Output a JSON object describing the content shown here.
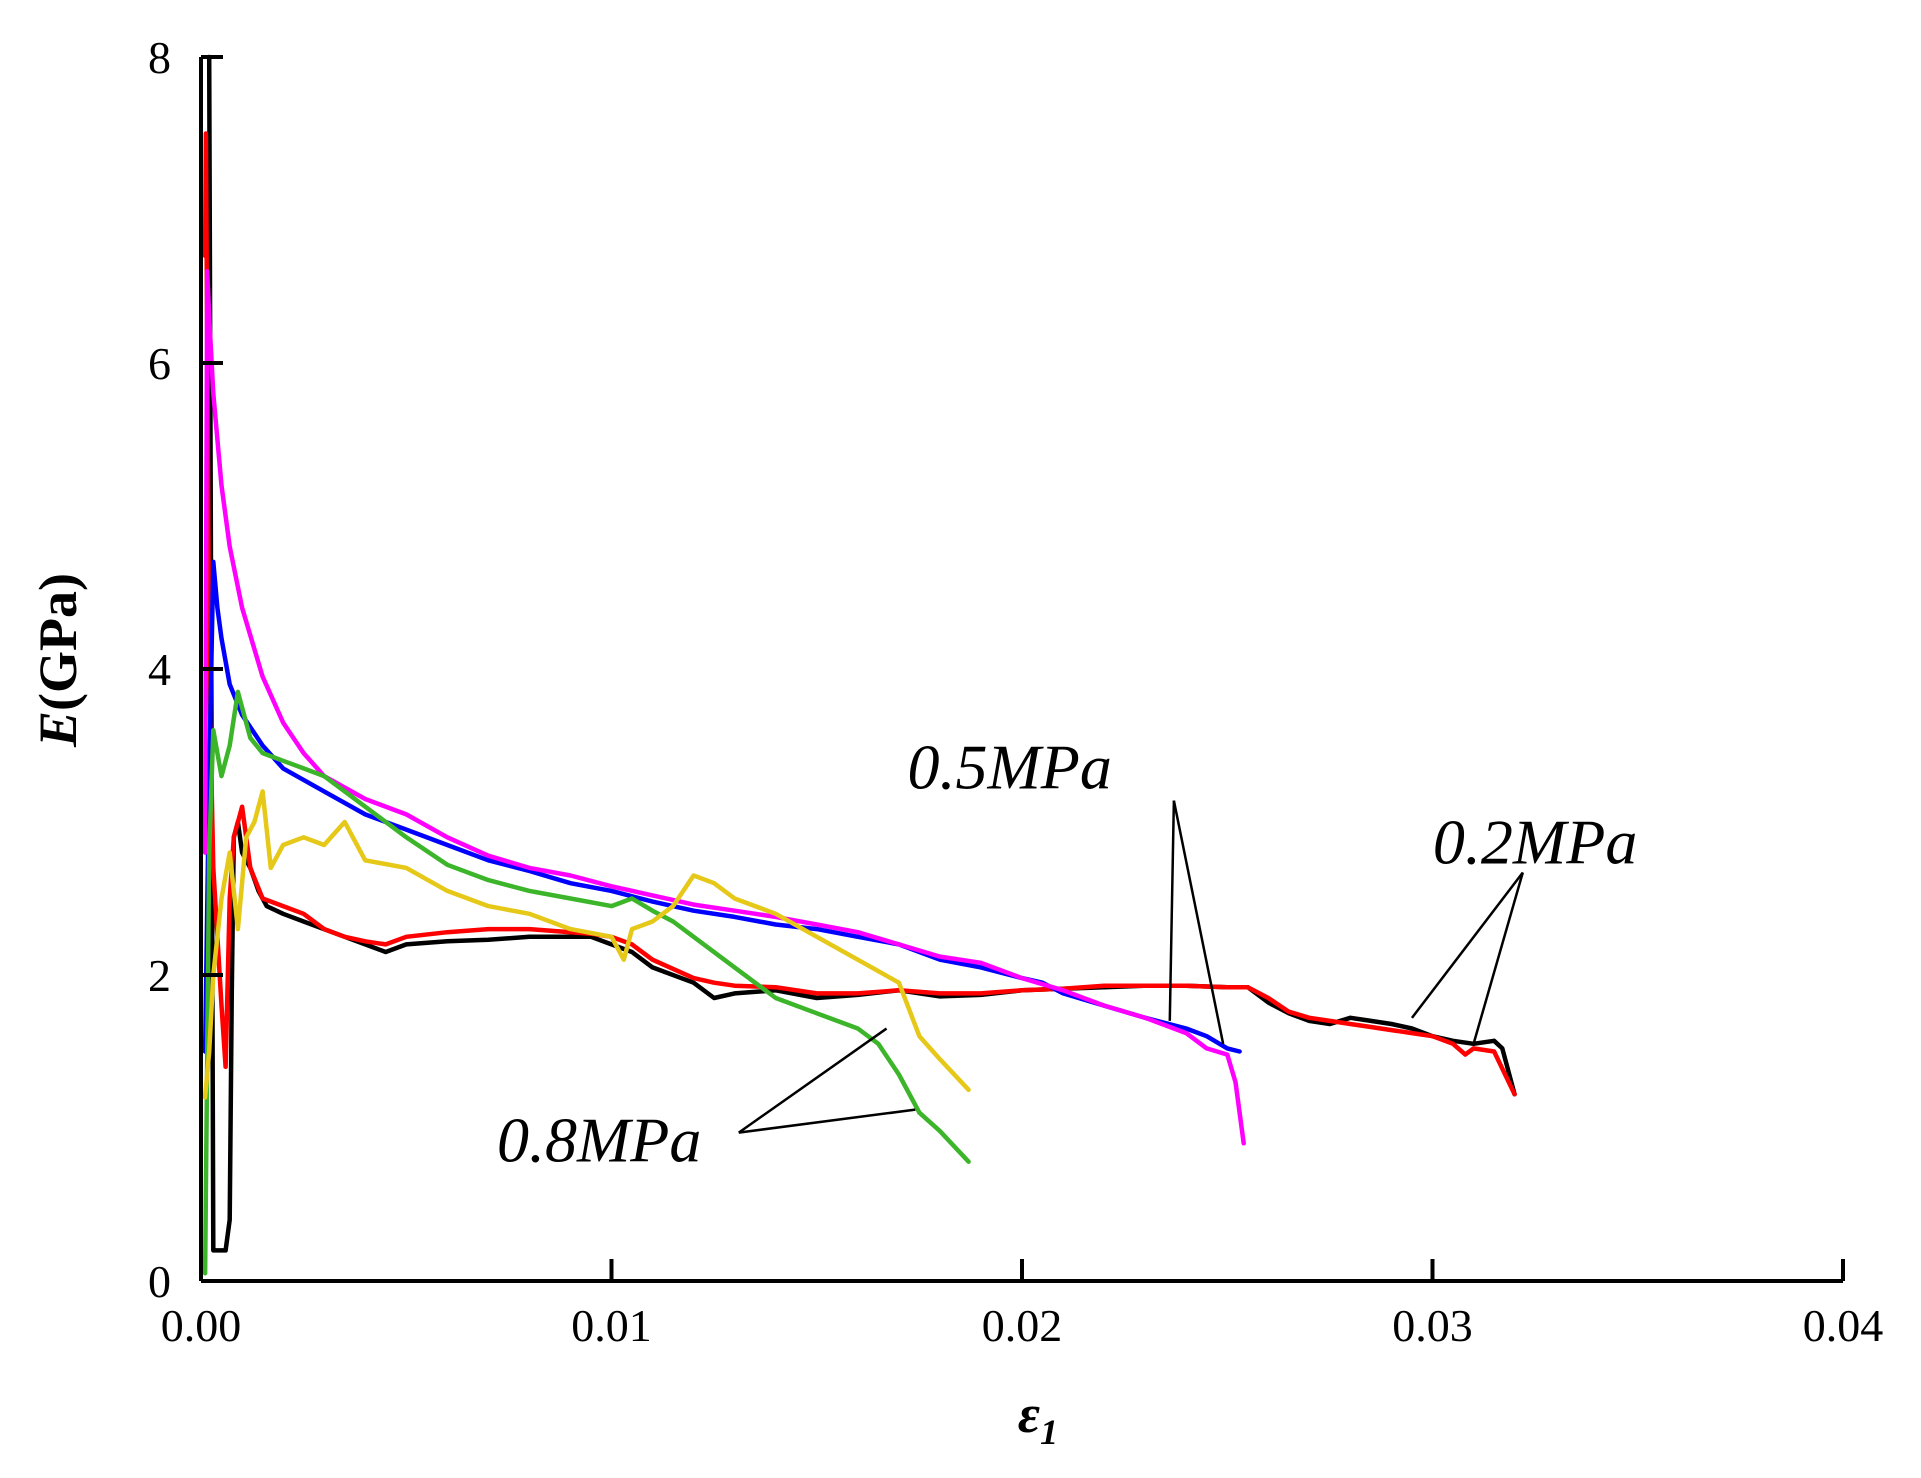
{
  "chart_data": {
    "type": "line",
    "title": "",
    "xlabel": "ε1",
    "xlabel_main": "ε",
    "xlabel_sub": "1",
    "ylabel": "E(GPa)",
    "ylabel_italic": "E",
    "ylabel_rest": "(GPa)",
    "xlim": [
      0,
      0.04
    ],
    "ylim": [
      0,
      8
    ],
    "xticks": [
      0,
      0.01,
      0.02,
      0.03,
      0.04
    ],
    "xtick_labels": [
      "0.00",
      "0.01",
      "0.02",
      "0.03",
      "0.04"
    ],
    "yticks": [
      0,
      2,
      4,
      6,
      8
    ],
    "ytick_labels": [
      "0",
      "2",
      "4",
      "6",
      "8"
    ],
    "grid": false,
    "series": [
      {
        "name": "0.2MPa (black)",
        "color": "#000000",
        "x": [
          0.0002,
          0.0003,
          0.0006,
          0.0007,
          0.00075,
          0.0008,
          0.0009,
          0.001,
          0.0012,
          0.0014,
          0.0016,
          0.002,
          0.0025,
          0.003,
          0.0035,
          0.004,
          0.0045,
          0.005,
          0.006,
          0.007,
          0.008,
          0.009,
          0.0095,
          0.01,
          0.0105,
          0.011,
          0.012,
          0.0125,
          0.013,
          0.014,
          0.015,
          0.016,
          0.017,
          0.018,
          0.019,
          0.02,
          0.021,
          0.022,
          0.023,
          0.024,
          0.025,
          0.0255,
          0.026,
          0.0265,
          0.027,
          0.0275,
          0.028,
          0.0285,
          0.029,
          0.0295,
          0.03,
          0.0305,
          0.031,
          0.0315,
          0.0317,
          0.032
        ],
        "y": [
          8.0,
          0.2,
          0.2,
          0.4,
          1.9,
          2.9,
          3.0,
          2.8,
          2.7,
          2.55,
          2.45,
          2.4,
          2.35,
          2.3,
          2.25,
          2.2,
          2.15,
          2.2,
          2.22,
          2.23,
          2.25,
          2.25,
          2.25,
          2.2,
          2.15,
          2.05,
          1.95,
          1.85,
          1.88,
          1.9,
          1.85,
          1.87,
          1.9,
          1.86,
          1.87,
          1.9,
          1.91,
          1.92,
          1.93,
          1.93,
          1.92,
          1.92,
          1.82,
          1.75,
          1.7,
          1.68,
          1.72,
          1.7,
          1.68,
          1.65,
          1.6,
          1.57,
          1.55,
          1.57,
          1.52,
          1.22
        ]
      },
      {
        "name": "0.2MPa (red)",
        "color": "#ff0000",
        "x": [
          0.0001,
          0.00012,
          0.0002,
          0.0003,
          0.0005,
          0.0006,
          0.0007,
          0.0008,
          0.001,
          0.0012,
          0.0015,
          0.002,
          0.0025,
          0.003,
          0.0035,
          0.004,
          0.0045,
          0.005,
          0.006,
          0.007,
          0.008,
          0.009,
          0.0095,
          0.01,
          0.0105,
          0.011,
          0.012,
          0.0125,
          0.013,
          0.014,
          0.015,
          0.016,
          0.017,
          0.018,
          0.019,
          0.02,
          0.021,
          0.022,
          0.023,
          0.024,
          0.025,
          0.0255,
          0.026,
          0.0265,
          0.027,
          0.0275,
          0.028,
          0.0285,
          0.029,
          0.0295,
          0.03,
          0.0305,
          0.0308,
          0.031,
          0.0315,
          0.032
        ],
        "y": [
          6.7,
          7.5,
          4.0,
          2.7,
          1.8,
          1.4,
          2.5,
          2.9,
          3.1,
          2.7,
          2.5,
          2.45,
          2.4,
          2.3,
          2.25,
          2.22,
          2.2,
          2.25,
          2.28,
          2.3,
          2.3,
          2.28,
          2.27,
          2.25,
          2.2,
          2.1,
          1.98,
          1.95,
          1.93,
          1.92,
          1.88,
          1.88,
          1.9,
          1.88,
          1.88,
          1.9,
          1.91,
          1.93,
          1.93,
          1.93,
          1.92,
          1.92,
          1.85,
          1.76,
          1.72,
          1.7,
          1.68,
          1.66,
          1.64,
          1.62,
          1.6,
          1.55,
          1.48,
          1.52,
          1.5,
          1.22
        ]
      },
      {
        "name": "0.5MPa (blue)",
        "color": "#0000ff",
        "x": [
          0.0001,
          0.0002,
          0.0003,
          0.0004,
          0.0005,
          0.0007,
          0.001,
          0.0015,
          0.002,
          0.003,
          0.004,
          0.005,
          0.006,
          0.007,
          0.008,
          0.009,
          0.01,
          0.011,
          0.012,
          0.013,
          0.014,
          0.015,
          0.016,
          0.017,
          0.018,
          0.019,
          0.02,
          0.0205,
          0.021,
          0.022,
          0.023,
          0.024,
          0.0245,
          0.025,
          0.0253
        ],
        "y": [
          1.5,
          3.3,
          4.7,
          4.4,
          4.2,
          3.9,
          3.7,
          3.5,
          3.35,
          3.2,
          3.05,
          2.95,
          2.85,
          2.75,
          2.68,
          2.6,
          2.55,
          2.48,
          2.42,
          2.38,
          2.33,
          2.3,
          2.25,
          2.2,
          2.1,
          2.05,
          1.98,
          1.95,
          1.88,
          1.8,
          1.72,
          1.65,
          1.6,
          1.52,
          1.5
        ]
      },
      {
        "name": "0.5MPa (magenta)",
        "color": "#ff00ff",
        "x": [
          0.0001,
          0.00015,
          0.0002,
          0.0003,
          0.0005,
          0.0007,
          0.001,
          0.0015,
          0.002,
          0.0025,
          0.003,
          0.004,
          0.005,
          0.006,
          0.007,
          0.008,
          0.009,
          0.01,
          0.011,
          0.012,
          0.013,
          0.014,
          0.015,
          0.016,
          0.017,
          0.018,
          0.019,
          0.02,
          0.021,
          0.022,
          0.023,
          0.024,
          0.0245,
          0.025,
          0.0252,
          0.0254
        ],
        "y": [
          2.8,
          6.6,
          6.3,
          5.8,
          5.2,
          4.8,
          4.4,
          3.95,
          3.65,
          3.45,
          3.3,
          3.15,
          3.05,
          2.9,
          2.78,
          2.7,
          2.65,
          2.58,
          2.52,
          2.46,
          2.42,
          2.38,
          2.33,
          2.28,
          2.2,
          2.12,
          2.08,
          1.98,
          1.9,
          1.8,
          1.72,
          1.62,
          1.52,
          1.48,
          1.3,
          0.9
        ]
      },
      {
        "name": "0.8MPa (green)",
        "color": "#3cb52a",
        "x": [
          0.0001,
          0.0002,
          0.0003,
          0.0005,
          0.0007,
          0.0009,
          0.0012,
          0.0015,
          0.002,
          0.0025,
          0.003,
          0.004,
          0.005,
          0.006,
          0.007,
          0.008,
          0.009,
          0.01,
          0.0105,
          0.011,
          0.0115,
          0.012,
          0.013,
          0.014,
          0.015,
          0.016,
          0.0165,
          0.017,
          0.0175,
          0.018,
          0.0187
        ],
        "y": [
          0.05,
          2.8,
          3.6,
          3.3,
          3.5,
          3.85,
          3.55,
          3.45,
          3.4,
          3.35,
          3.3,
          3.1,
          2.9,
          2.72,
          2.62,
          2.55,
          2.5,
          2.45,
          2.5,
          2.42,
          2.35,
          2.25,
          2.05,
          1.85,
          1.75,
          1.65,
          1.55,
          1.35,
          1.1,
          0.98,
          0.78
        ]
      },
      {
        "name": "0.8MPa (yellow)",
        "color": "#e6c818",
        "x": [
          0.0001,
          0.0002,
          0.0003,
          0.0005,
          0.0007,
          0.0009,
          0.0011,
          0.0013,
          0.0015,
          0.0017,
          0.002,
          0.0025,
          0.003,
          0.0035,
          0.004,
          0.005,
          0.006,
          0.007,
          0.008,
          0.009,
          0.01,
          0.0103,
          0.0105,
          0.011,
          0.0115,
          0.012,
          0.0125,
          0.013,
          0.014,
          0.015,
          0.016,
          0.017,
          0.0175,
          0.018,
          0.0187
        ],
        "y": [
          1.2,
          1.5,
          2.0,
          2.5,
          2.8,
          2.3,
          2.9,
          3.0,
          3.2,
          2.7,
          2.85,
          2.9,
          2.85,
          3.0,
          2.75,
          2.7,
          2.55,
          2.45,
          2.4,
          2.3,
          2.25,
          2.1,
          2.3,
          2.35,
          2.45,
          2.65,
          2.6,
          2.5,
          2.4,
          2.25,
          2.1,
          1.95,
          1.6,
          1.45,
          1.25
        ]
      }
    ],
    "annotations": [
      {
        "label": "0.5MPa",
        "text_at": [
          0.0197,
          3.22
        ],
        "anchor": "middle",
        "apex": [
          0.0237,
          3.14
        ],
        "targets": [
          [
            0.0236,
            1.7
          ],
          [
            0.0249,
            1.55
          ]
        ]
      },
      {
        "label": "0.2MPa",
        "text_at": [
          0.0325,
          2.73
        ],
        "anchor": "middle",
        "apex": [
          0.0322,
          2.67
        ],
        "targets": [
          [
            0.0295,
            1.72
          ],
          [
            0.031,
            1.55
          ]
        ]
      },
      {
        "label": "0.8MPa",
        "text_at": [
          0.0097,
          0.78
        ],
        "anchor": "middle",
        "apex": [
          0.0131,
          0.97
        ],
        "targets": [
          [
            0.0167,
            1.65
          ],
          [
            0.0174,
            1.12
          ]
        ]
      }
    ]
  }
}
